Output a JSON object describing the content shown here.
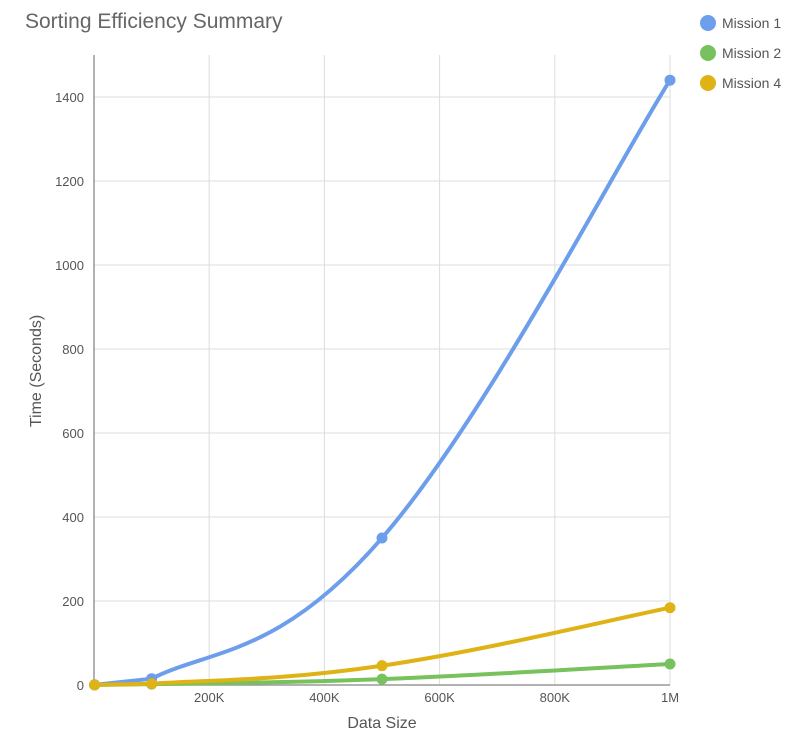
{
  "chart_data": {
    "type": "line",
    "title": "Sorting Efficiency Summary",
    "xlabel": "Data Size",
    "ylabel": "Time (Seconds)",
    "xlim": [
      0,
      1000000
    ],
    "ylim": [
      0,
      1500
    ],
    "x_ticks": [
      {
        "value": 200000,
        "label": "200K"
      },
      {
        "value": 400000,
        "label": "400K"
      },
      {
        "value": 600000,
        "label": "600K"
      },
      {
        "value": 800000,
        "label": "800K"
      },
      {
        "value": 1000000,
        "label": "1M"
      }
    ],
    "y_ticks": [
      0,
      200,
      400,
      600,
      800,
      1000,
      1200,
      1400
    ],
    "grid": true,
    "legend_position": "top-right",
    "series": [
      {
        "name": "Mission 1",
        "color": "#6d9eeb",
        "x": [
          1000,
          100000,
          500000,
          1000000
        ],
        "y": [
          0.5,
          15,
          350,
          1440
        ]
      },
      {
        "name": "Mission 2",
        "color": "#78c25e",
        "x": [
          1000,
          100000,
          500000,
          1000000
        ],
        "y": [
          0.1,
          2,
          14,
          50
        ]
      },
      {
        "name": "Mission 4",
        "color": "#dfb216",
        "x": [
          1000,
          100000,
          500000,
          1000000
        ],
        "y": [
          0.2,
          3,
          46,
          184
        ]
      }
    ]
  }
}
